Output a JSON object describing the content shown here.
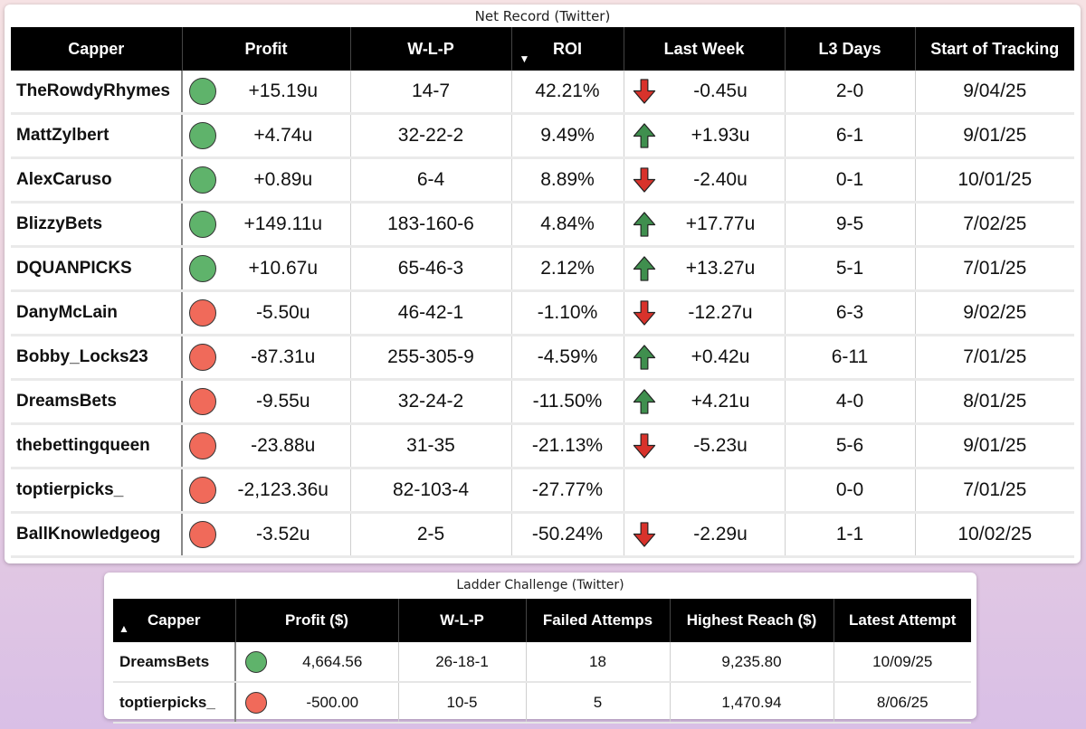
{
  "net_record": {
    "title": "Net Record (Twitter)",
    "columns": [
      "Capper",
      "Profit",
      "W-L-P",
      "ROI",
      "Last Week",
      "L3 Days",
      "Start of Tracking"
    ],
    "sort_column": "ROI",
    "sort_direction": "descending",
    "rows": [
      {
        "capper": "TheRowdyRhymes",
        "status": "green",
        "profit": "+15.19u",
        "wlp": "14-7",
        "roi": "42.21%",
        "trend": "down",
        "last_week": "-0.45u",
        "l3": "2-0",
        "start": "9/04/25"
      },
      {
        "capper": "MattZylbert",
        "status": "green",
        "profit": "+4.74u",
        "wlp": "32-22-2",
        "roi": "9.49%",
        "trend": "up",
        "last_week": "+1.93u",
        "l3": "6-1",
        "start": "9/01/25"
      },
      {
        "capper": "AlexCaruso",
        "status": "green",
        "profit": "+0.89u",
        "wlp": "6-4",
        "roi": "8.89%",
        "trend": "down",
        "last_week": "-2.40u",
        "l3": "0-1",
        "start": "10/01/25"
      },
      {
        "capper": "BlizzyBets",
        "status": "green",
        "profit": "+149.11u",
        "wlp": "183-160-6",
        "roi": "4.84%",
        "trend": "up",
        "last_week": "+17.77u",
        "l3": "9-5",
        "start": "7/02/25"
      },
      {
        "capper": "DQUANPICKS",
        "status": "green",
        "profit": "+10.67u",
        "wlp": "65-46-3",
        "roi": "2.12%",
        "trend": "up",
        "last_week": "+13.27u",
        "l3": "5-1",
        "start": "7/01/25"
      },
      {
        "capper": "DanyMcLain",
        "status": "red",
        "profit": "-5.50u",
        "wlp": "46-42-1",
        "roi": "-1.10%",
        "trend": "down",
        "last_week": "-12.27u",
        "l3": "6-3",
        "start": "9/02/25"
      },
      {
        "capper": "Bobby_Locks23",
        "status": "red",
        "profit": "-87.31u",
        "wlp": "255-305-9",
        "roi": "-4.59%",
        "trend": "up",
        "last_week": "+0.42u",
        "l3": "6-11",
        "start": "7/01/25"
      },
      {
        "capper": "DreamsBets",
        "status": "red",
        "profit": "-9.55u",
        "wlp": "32-24-2",
        "roi": "-11.50%",
        "trend": "up",
        "last_week": "+4.21u",
        "l3": "4-0",
        "start": "8/01/25"
      },
      {
        "capper": "thebettingqueen",
        "status": "red",
        "profit": "-23.88u",
        "wlp": "31-35",
        "roi": "-21.13%",
        "trend": "down",
        "last_week": "-5.23u",
        "l3": "5-6",
        "start": "9/01/25"
      },
      {
        "capper": "toptierpicks_",
        "status": "red",
        "profit": "-2,123.36u",
        "wlp": "82-103-4",
        "roi": "-27.77%",
        "trend": "none",
        "last_week": "",
        "l3": "0-0",
        "start": "7/01/25"
      },
      {
        "capper": "BallKnowledgeog",
        "status": "red",
        "profit": "-3.52u",
        "wlp": "2-5",
        "roi": "-50.24%",
        "trend": "down",
        "last_week": "-2.29u",
        "l3": "1-1",
        "start": "10/02/25"
      }
    ]
  },
  "ladder": {
    "title": "Ladder Challenge (Twitter)",
    "columns": [
      "Capper",
      "Profit ($)",
      "W-L-P",
      "Failed Attemps",
      "Highest Reach ($)",
      "Latest Attempt"
    ],
    "sort_column": "Capper",
    "sort_direction": "ascending",
    "rows": [
      {
        "capper": "DreamsBets",
        "status": "green",
        "profit": "4,664.56",
        "wlp": "26-18-1",
        "failed": "18",
        "highest": "9,235.80",
        "latest": "10/09/25"
      },
      {
        "capper": "toptierpicks_",
        "status": "red",
        "profit": "-500.00",
        "wlp": "10-5",
        "failed": "5",
        "highest": "1,470.94",
        "latest": "8/06/25"
      }
    ]
  },
  "icons": {
    "status_dot": "status-dot-icon",
    "trend_up": "arrow-up-icon",
    "trend_down": "arrow-down-icon",
    "sort_desc": "sort-descending-icon",
    "sort_asc": "sort-ascending-icon"
  },
  "colors": {
    "positive": "#5fb36b",
    "negative": "#f06a5a",
    "arrow_up": "#3f8f4e",
    "arrow_down": "#d8322b",
    "header_bg": "#000000"
  }
}
